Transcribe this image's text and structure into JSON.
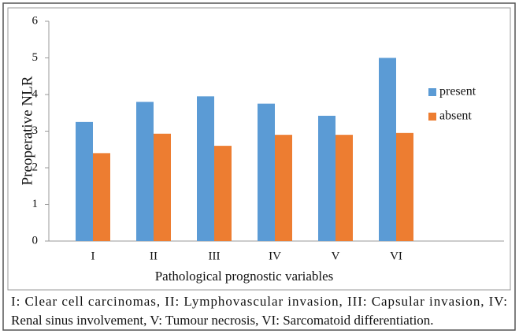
{
  "chart_data": {
    "type": "bar",
    "categories": [
      "I",
      "II",
      "III",
      "IV",
      "V",
      "VI"
    ],
    "series": [
      {
        "name": "present",
        "color": "#5b9bd5",
        "values": [
          3.25,
          3.8,
          3.95,
          3.75,
          3.42,
          5.0
        ]
      },
      {
        "name": "absent",
        "color": "#ed7d31",
        "values": [
          2.4,
          2.93,
          2.6,
          2.9,
          2.9,
          2.95
        ]
      }
    ],
    "ylabel": "Preoperative NLR",
    "xlabel": "Pathological prognostic variables",
    "ylim": [
      0,
      6
    ],
    "yticks": [
      0,
      1,
      2,
      3,
      4,
      5,
      6
    ],
    "legend": "right",
    "caption": [
      "I: Clear cell carcinomas, II: Lymphovascular invasion, III: Capsular invasion, IV:",
      "Renal sinus involvement, V: Tumour necrosis, VI: Sarcomatoid differentiation."
    ]
  }
}
